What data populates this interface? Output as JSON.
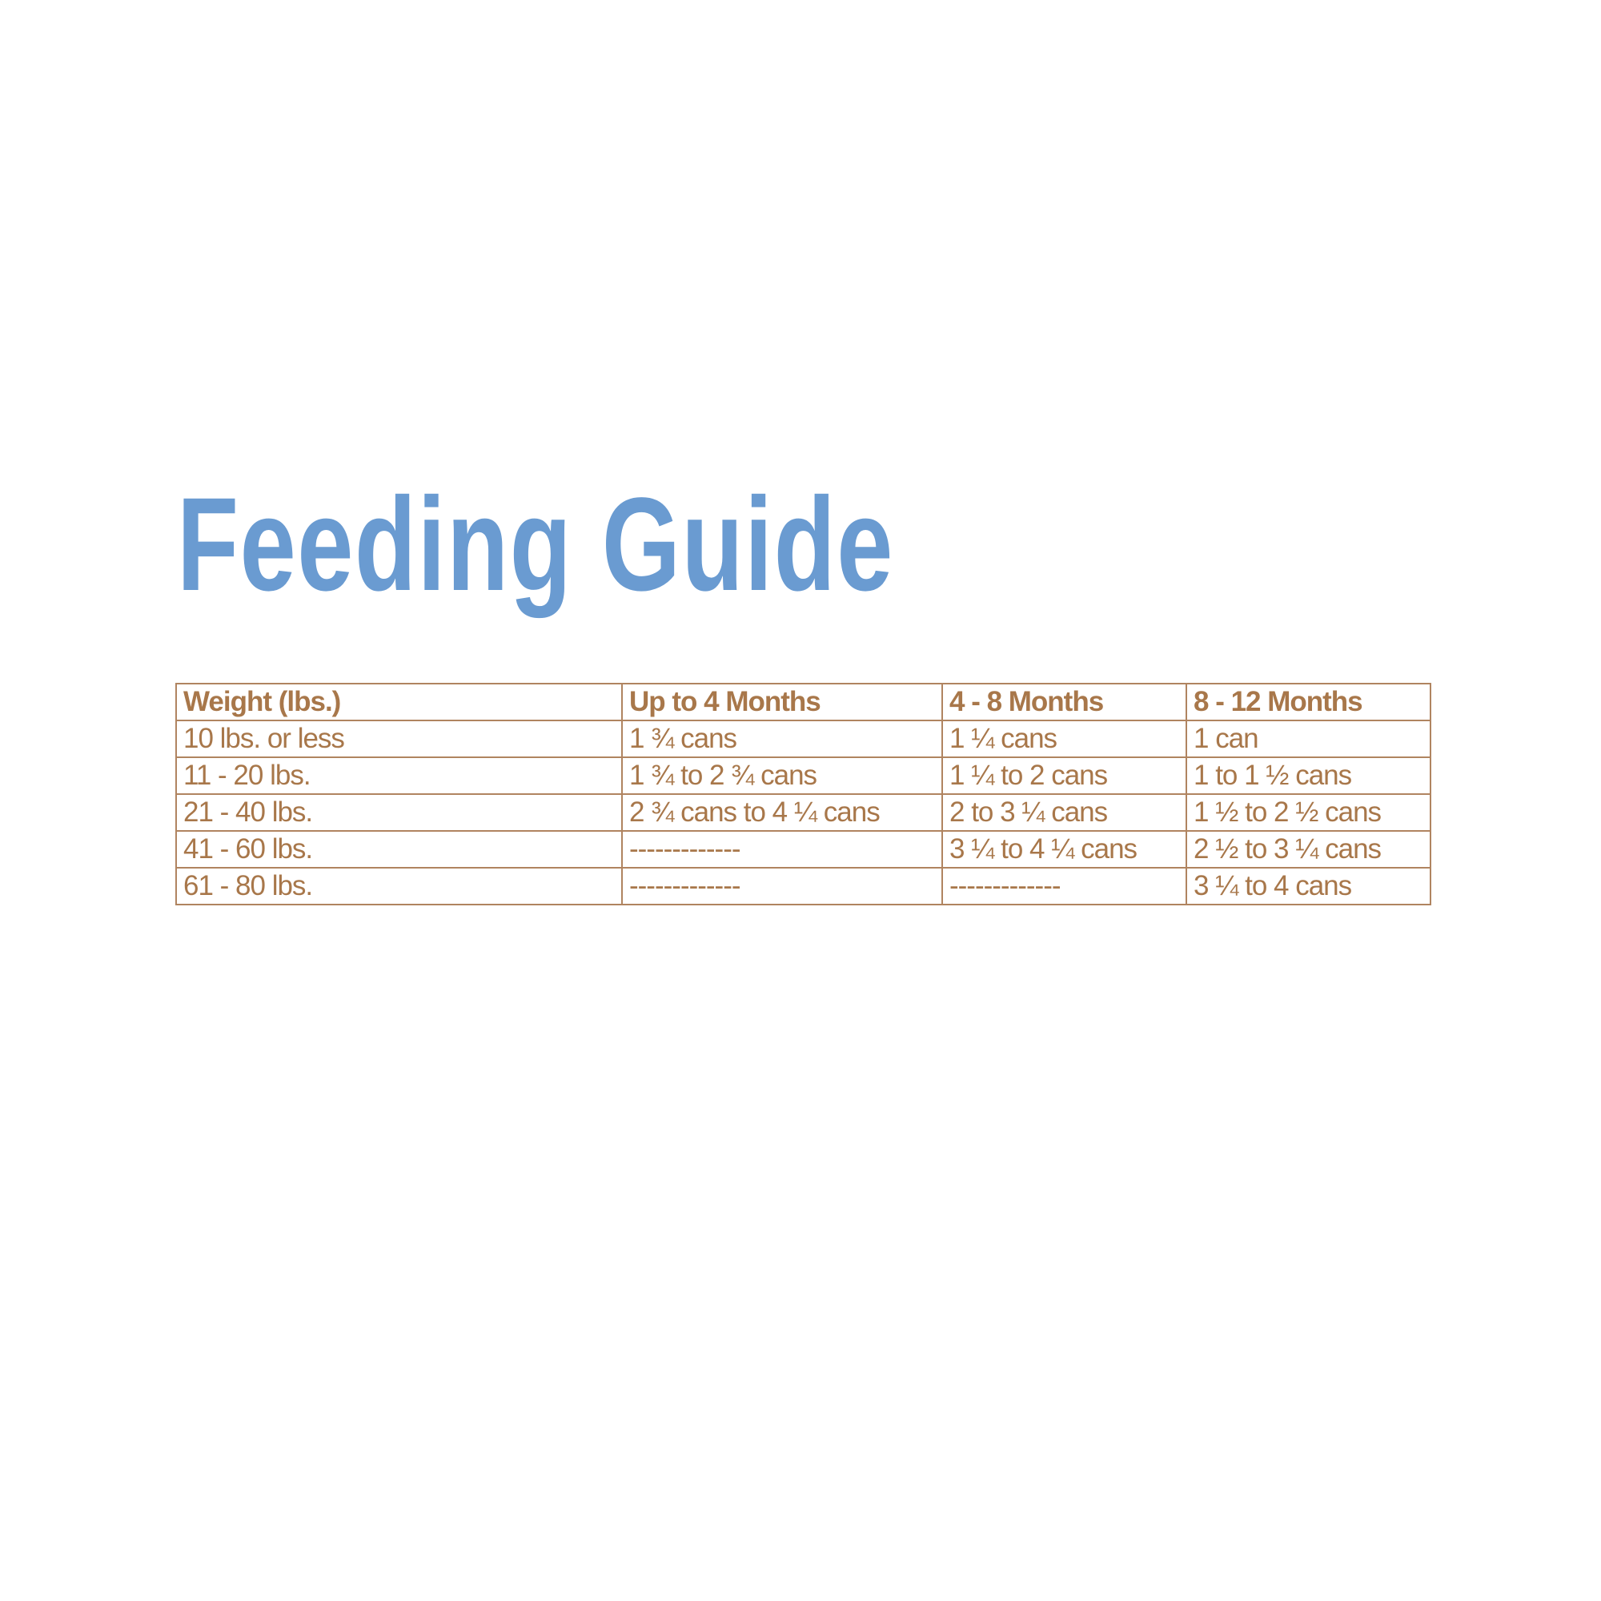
{
  "title": "Feeding Guide",
  "colors": {
    "title": "#6a9bd1",
    "table_text": "#a8774a",
    "table_border": "#b08460"
  },
  "table": {
    "headers": [
      "Weight (lbs.)",
      "Up to 4 Months",
      "4 - 8 Months",
      "8 - 12 Months"
    ],
    "rows": [
      [
        "10 lbs. or less",
        "1 ¾ cans",
        "1 ¼ cans",
        "1 can"
      ],
      [
        "11 - 20 lbs.",
        "1 ¾ to 2 ¾ cans",
        "1 ¼ to 2 cans",
        "1 to 1 ½ cans"
      ],
      [
        "21 - 40 lbs.",
        "2 ¾ cans to 4 ¼ cans",
        "2 to 3 ¼ cans",
        "1 ½ to 2 ½ cans"
      ],
      [
        "41 - 60 lbs.",
        "-------------",
        "3 ¼ to 4 ¼ cans",
        "2 ½ to 3 ¼ cans"
      ],
      [
        "61 - 80 lbs.",
        "-------------",
        "-------------",
        "3 ¼ to 4 cans"
      ]
    ]
  }
}
